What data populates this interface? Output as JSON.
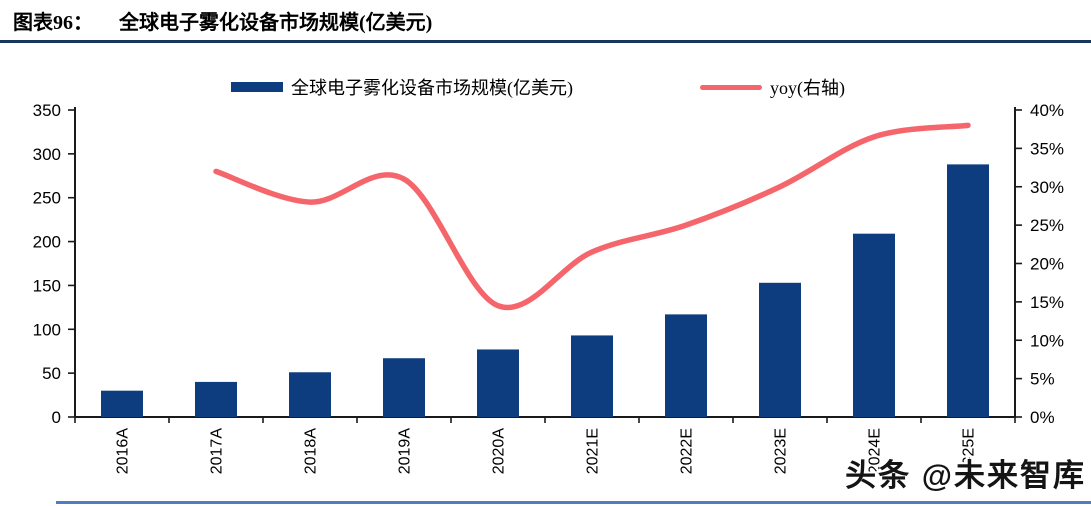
{
  "figure": {
    "label": "图表96：",
    "title": "全球电子雾化设备市场规模(亿美元)"
  },
  "watermark": "头条 @未来智库",
  "colors": {
    "bar": "#0d3d7e",
    "line": "#f5666c",
    "axis": "#1a1a1a",
    "title_rule": "#17375e",
    "bottom_rule": "#4d7ebf"
  },
  "chart_data": {
    "type": "bar+line combo",
    "categories": [
      "2016A",
      "2017A",
      "2018A",
      "2019A",
      "2020A",
      "2021E",
      "2022E",
      "2023E",
      "2024E",
      "2025E"
    ],
    "series": [
      {
        "name": "全球电子雾化设备市场规模(亿美元)",
        "type": "bar",
        "axis": "left",
        "color": "#0d3d7e",
        "values": [
          30,
          40,
          51,
          67,
          77,
          93,
          117,
          153,
          209,
          288
        ]
      },
      {
        "name": "yoy(右轴)",
        "type": "line",
        "axis": "right",
        "color": "#f5666c",
        "unit": "%",
        "values": [
          null,
          32,
          28,
          31,
          14.5,
          21.5,
          25,
          30,
          36.5,
          38
        ]
      }
    ],
    "left_axis": {
      "min": 0,
      "max": 350,
      "step": 50,
      "tick_labels": [
        "0",
        "50",
        "100",
        "150",
        "200",
        "250",
        "300",
        "350"
      ]
    },
    "right_axis": {
      "min": 0,
      "max": 40,
      "step": 5,
      "tick_labels": [
        "0%",
        "5%",
        "10%",
        "15%",
        "20%",
        "25%",
        "30%",
        "35%",
        "40%"
      ]
    },
    "legend": [
      {
        "label": "全球电子雾化设备市场规模(亿美元)",
        "marker": "bar",
        "color": "#0d3d7e"
      },
      {
        "label": "yoy(右轴)",
        "marker": "line",
        "color": "#f5666c"
      }
    ],
    "legend_position": "top",
    "grid": false,
    "x_tick_rotation": -90
  }
}
